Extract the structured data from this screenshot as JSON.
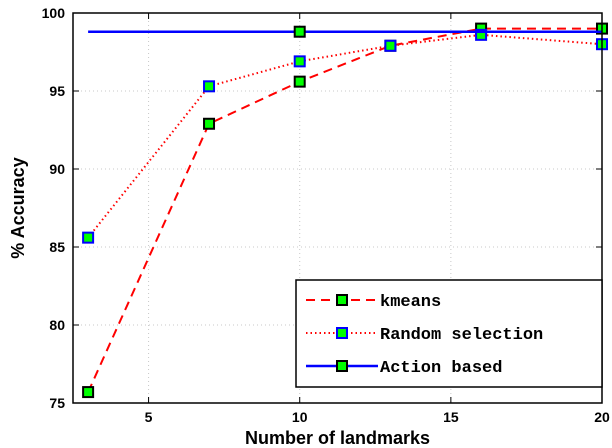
{
  "chart_data": {
    "type": "line",
    "title": "",
    "xlabel": "Number of landmarks",
    "ylabel": "% Accuracy",
    "xlim": [
      2.5,
      20
    ],
    "ylim": [
      75,
      100
    ],
    "xticks": [
      5,
      10,
      15,
      20
    ],
    "yticks": [
      75,
      80,
      85,
      90,
      95,
      100
    ],
    "grid": true,
    "legend_position": "bottom-right",
    "series": [
      {
        "name": "kmeans",
        "color": "#ff0000",
        "line_style": "dashed",
        "marker_face": "#00ff00",
        "marker_edge": "#000000",
        "x": [
          3,
          7,
          10,
          13,
          16,
          20
        ],
        "y": [
          75.7,
          92.9,
          95.6,
          97.9,
          99.0,
          99.0
        ]
      },
      {
        "name": "Random selection",
        "color": "#ff0000",
        "line_style": "dotted",
        "marker_face": "#00ff00",
        "marker_edge": "#0000ff",
        "x": [
          3,
          7,
          10,
          13,
          16,
          20
        ],
        "y": [
          85.6,
          95.3,
          96.9,
          97.9,
          98.6,
          98.0
        ]
      },
      {
        "name": "Action based",
        "color": "#0000ff",
        "line_style": "solid",
        "marker_face": "#00ff00",
        "marker_edge": "#000000",
        "x": [
          3,
          10,
          20
        ],
        "y": [
          98.8,
          98.8,
          98.8
        ],
        "marker_x": [
          10
        ]
      }
    ]
  }
}
